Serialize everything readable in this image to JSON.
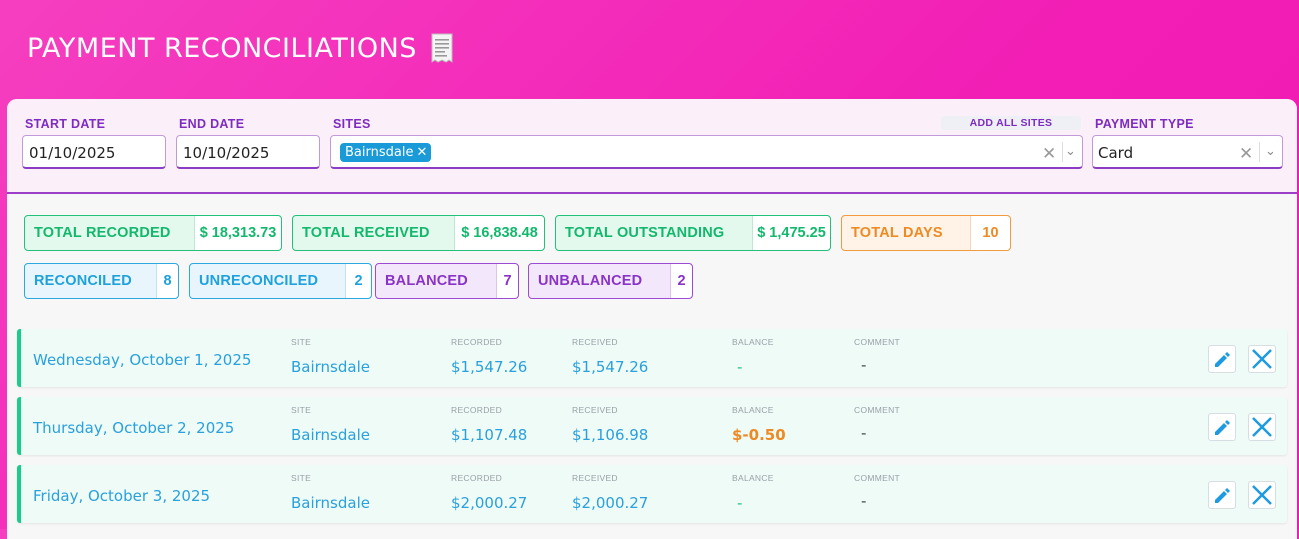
{
  "header": {
    "title": "PAYMENT RECONCILIATIONS",
    "icon": "receipt-icon"
  },
  "filters": {
    "start_date_label": "START DATE",
    "start_date_value": "01/10/2025",
    "end_date_label": "END DATE",
    "end_date_value": "10/10/2025",
    "sites_label": "SITES",
    "sites_selected": [
      "Bairnsdale"
    ],
    "add_all_sites_label": "ADD ALL SITES",
    "payment_type_label": "PAYMENT TYPE",
    "payment_type_value": "Card"
  },
  "stats": {
    "total_recorded": {
      "label": "TOTAL RECORDED",
      "value": "$ 18,313.73"
    },
    "total_received": {
      "label": "TOTAL RECEIVED",
      "value": "$ 16,838.48"
    },
    "total_outstanding": {
      "label": "TOTAL OUTSTANDING",
      "value": "$ 1,475.25"
    },
    "total_days": {
      "label": "TOTAL DAYS",
      "value": "10"
    },
    "reconciled": {
      "label": "RECONCILED",
      "value": "8"
    },
    "unreconciled": {
      "label": "UNRECONCILED",
      "value": "2"
    },
    "balanced": {
      "label": "BALANCED",
      "value": "7"
    },
    "unbalanced": {
      "label": "UNBALANCED",
      "value": "2"
    }
  },
  "columns": {
    "site": "SITE",
    "recorded": "RECORDED",
    "received": "RECEIVED",
    "balance": "BALANCE",
    "comment": "COMMENT"
  },
  "rows": [
    {
      "date": "Wednesday, October 1, 2025",
      "site": "Bairnsdale",
      "recorded": "$1,547.26",
      "received": "$1,547.26",
      "balance": "-",
      "comment": "-"
    },
    {
      "date": "Thursday, October 2, 2025",
      "site": "Bairnsdale",
      "recorded": "$1,107.48",
      "received": "$1,106.98",
      "balance": "$-0.50",
      "comment": "-"
    },
    {
      "date": "Friday, October 3, 2025",
      "site": "Bairnsdale",
      "recorded": "$2,000.27",
      "received": "$2,000.27",
      "balance": "-",
      "comment": "-"
    }
  ],
  "colors": {
    "header_pink": "#f21eb5",
    "accent_purple": "#7e2bc0",
    "accent_blue": "#2aa0dc",
    "green": "#12b86c",
    "orange": "#ee8a24",
    "row_border_green": "#1dc98d"
  }
}
